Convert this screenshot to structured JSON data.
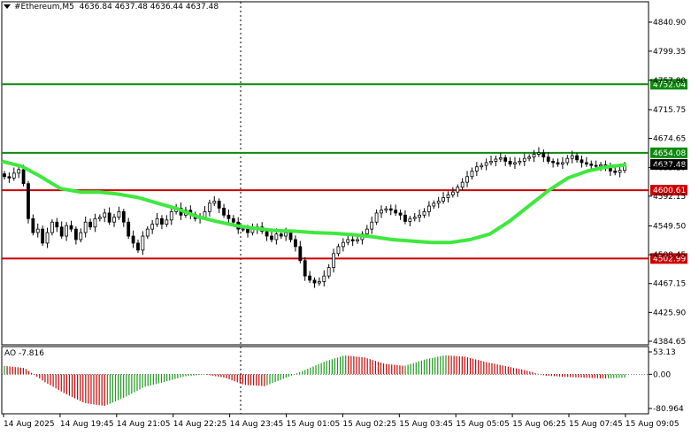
{
  "header": {
    "symbol": "#Ethereum,M5",
    "ohlc": "4636.84 4637.48 4636.44 4637.48"
  },
  "colors": {
    "background": "#ffffff",
    "candle": "#000000",
    "ma_line": "#3ee83e",
    "support_resistance": "#cc0000",
    "top_level": "#0b8a0b",
    "ao_up": "#1a9a1a",
    "ao_down": "#cc0000",
    "price_label_bg": "#cc0000",
    "current_price_bg": "#000000"
  },
  "price_axis": {
    "ticks": [
      "4840.90",
      "4799.35",
      "4757.80",
      "4715.75",
      "4674.65",
      "4633.10",
      "4592.15",
      "4549.50",
      "4508.45",
      "4467.15",
      "4425.90",
      "4384.65"
    ]
  },
  "levels": {
    "top_green": {
      "value": "4752.04"
    },
    "upper_green": {
      "value": "4654.08"
    },
    "current": {
      "value": "4637.48"
    },
    "middle_red": {
      "value": "4600.61"
    },
    "lower_red": {
      "value": "4502.99"
    }
  },
  "ao": {
    "label": "AO -7.816",
    "ticks": [
      "53.13",
      "0.00",
      "-80.964"
    ]
  },
  "time_axis": {
    "labels": [
      "14 Aug 2025",
      "14 Aug 19:45",
      "14 Aug 21:05",
      "14 Aug 22:25",
      "14 Aug 23:45",
      "15 Aug 01:05",
      "15 Aug 02:25",
      "15 Aug 03:45",
      "15 Aug 05:05",
      "15 Aug 06:25",
      "15 Aug 07:45",
      "15 Aug 09:05"
    ]
  },
  "chart_data": {
    "type": "candlestick",
    "instrument": "#Ethereum",
    "timeframe": "M5",
    "price_range": [
      4384.65,
      4840.9
    ],
    "ao_range": [
      -80.964,
      53.13
    ],
    "close": [
      4620,
      4618,
      4625,
      4630,
      4610,
      4560,
      4540,
      4545,
      4525,
      4540,
      4555,
      4548,
      4535,
      4550,
      4545,
      4530,
      4540,
      4555,
      4548,
      4560,
      4562,
      4568,
      4555,
      4562,
      4570,
      4555,
      4535,
      4525,
      4515,
      4535,
      4545,
      4552,
      4560,
      4552,
      4558,
      4570,
      4575,
      4565,
      4572,
      4566,
      4560,
      4562,
      4570,
      4582,
      4585,
      4575,
      4565,
      4560,
      4555,
      4545,
      4545,
      4540,
      4545,
      4548,
      4542,
      4535,
      4530,
      4538,
      4535,
      4540,
      4530,
      4520,
      4500,
      4478,
      4472,
      4468,
      4470,
      4478,
      4490,
      4510,
      4520,
      4526,
      4530,
      4528,
      4530,
      4538,
      4545,
      4555,
      4568,
      4572,
      4574,
      4572,
      4568,
      4565,
      4556,
      4560,
      4562,
      4565,
      4570,
      4578,
      4582,
      4585,
      4590,
      4594,
      4598,
      4605,
      4612,
      4620,
      4628,
      4634,
      4636,
      4640,
      4642,
      4645,
      4647,
      4642,
      4638,
      4640,
      4642,
      4646,
      4648,
      4652,
      4654,
      4648,
      4642,
      4640,
      4638,
      4640,
      4646,
      4650,
      4644,
      4640,
      4638,
      4636,
      4635,
      4637,
      4632,
      4628,
      4626,
      4629,
      4637
    ],
    "ma": [
      4642,
      4635,
      4620,
      4603,
      4598,
      4598,
      4595,
      4590,
      4582,
      4574,
      4563,
      4556,
      4550,
      4546,
      4543,
      4542,
      4540,
      4539,
      4537,
      4534,
      4530,
      4528,
      4526,
      4526,
      4530,
      4538,
      4556,
      4578,
      4600,
      4618,
      4628,
      4634,
      4637
    ],
    "ao": [
      20,
      15,
      -18,
      -45,
      -68,
      -75,
      -55,
      -30,
      -18,
      -5,
      0,
      -8,
      -25,
      -28,
      -10,
      10,
      30,
      45,
      40,
      25,
      20,
      35,
      45,
      42,
      30,
      20,
      10,
      -3,
      -6,
      -8,
      -10,
      -8
    ],
    "levels": [
      4752.04,
      4654.08,
      4600.61,
      4502.99
    ],
    "current_price": 4637.48
  }
}
